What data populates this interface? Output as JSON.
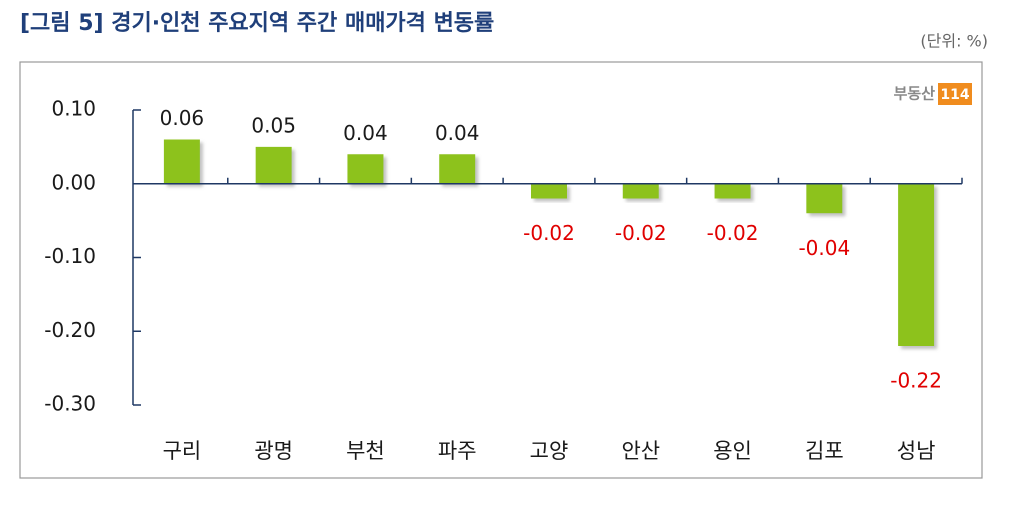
{
  "chart_data": {
    "type": "bar",
    "title": "[그림 5] 경기·인천 주요지역 주간 매매가격 변동률",
    "unit": "(단위: %)",
    "logo": "부동산",
    "logo_badge": "114",
    "categories": [
      "구리",
      "광명",
      "부천",
      "파주",
      "고양",
      "안산",
      "용인",
      "김포",
      "성남"
    ],
    "values": [
      0.06,
      0.05,
      0.04,
      0.04,
      -0.02,
      -0.02,
      -0.02,
      -0.04,
      -0.22
    ],
    "color": "#8dc21f",
    "label_colors": {
      "positive": "#1a1a1a",
      "negative": "#e00000"
    },
    "ylim": [
      -0.3,
      0.1
    ],
    "yticks": [
      {
        "value": 0.1,
        "label": "0.10"
      },
      {
        "value": 0,
        "label": "0.00"
      },
      {
        "value": -0.1,
        "label": "-0.10"
      },
      {
        "value": -0.2,
        "label": "-0.20"
      },
      {
        "value": -0.3,
        "label": "-0.30"
      }
    ]
  }
}
